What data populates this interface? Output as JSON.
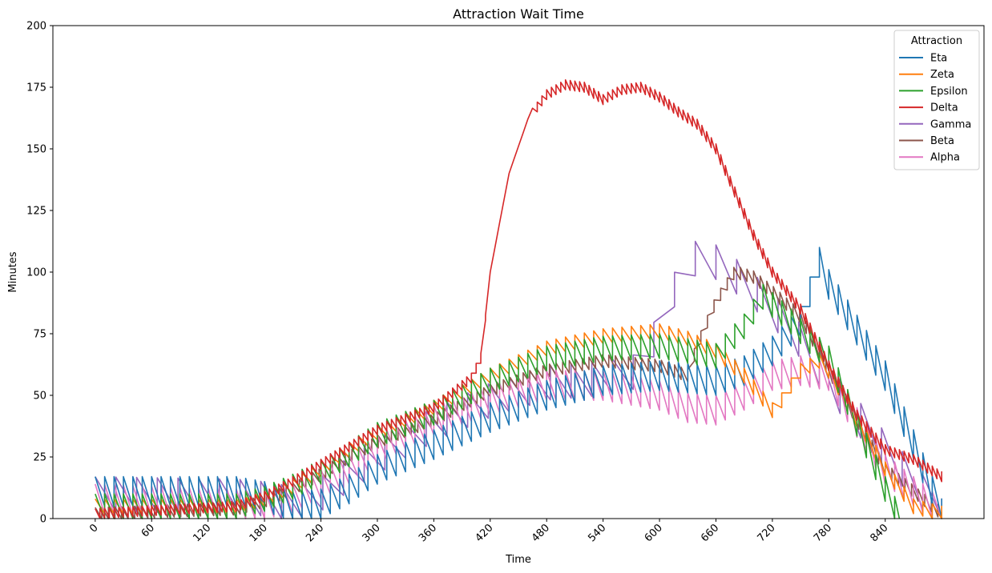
{
  "chart_data": {
    "type": "line",
    "title": "Attraction Wait Time",
    "xlabel": "Time",
    "ylabel": "Minutes",
    "xlim": [
      -45,
      945
    ],
    "ylim": [
      0,
      200
    ],
    "xticks": [
      0,
      60,
      120,
      180,
      240,
      300,
      360,
      420,
      480,
      540,
      600,
      660,
      720,
      780,
      840
    ],
    "yticks": [
      0,
      25,
      50,
      75,
      100,
      125,
      150,
      175,
      200
    ],
    "x_tick_rotation": 45,
    "grid": false,
    "legend": {
      "title": "Attraction",
      "placement": "top-right"
    },
    "series": [
      {
        "name": "Eta",
        "color": "#1f77b4",
        "period": 10,
        "amp": 12,
        "x": [
          0,
          150,
          180,
          210,
          240,
          270,
          300,
          360,
          420,
          480,
          540,
          600,
          660,
          690,
          720,
          750,
          770,
          780,
          840,
          900
        ],
        "y": [
          11,
          11,
          9,
          5,
          6,
          12,
          20,
          30,
          41,
          50,
          56,
          58,
          56,
          60,
          68,
          80,
          104,
          95,
          58,
          2
        ]
      },
      {
        "name": "Zeta",
        "color": "#ff7f0e",
        "period": 10,
        "amp": 6,
        "x": [
          0,
          150,
          180,
          210,
          240,
          270,
          300,
          360,
          420,
          480,
          540,
          600,
          630,
          660,
          690,
          720,
          730,
          750,
          770,
          780,
          840,
          870,
          900
        ],
        "y": [
          5,
          5,
          8,
          13,
          20,
          28,
          35,
          45,
          58,
          69,
          74,
          76,
          73,
          68,
          58,
          44,
          48,
          60,
          64,
          60,
          20,
          5,
          2
        ]
      },
      {
        "name": "Epsilon",
        "color": "#2ca02c",
        "period": 10,
        "amp": 10,
        "x": [
          0,
          150,
          180,
          210,
          240,
          270,
          300,
          360,
          420,
          480,
          540,
          600,
          660,
          690,
          710,
          740,
          760,
          780,
          840,
          855
        ],
        "y": [
          5,
          5,
          8,
          13,
          19,
          26,
          34,
          43,
          56,
          65,
          69,
          70,
          66,
          78,
          90,
          80,
          72,
          65,
          12,
          0
        ]
      },
      {
        "name": "Delta",
        "color": "#d62728",
        "period": 5,
        "amp": 4,
        "x": [
          0,
          150,
          180,
          210,
          240,
          270,
          300,
          360,
          400,
          410,
          420,
          440,
          460,
          480,
          500,
          520,
          540,
          560,
          580,
          600,
          620,
          640,
          660,
          700,
          720,
          750,
          780,
          810,
          840,
          870,
          900
        ],
        "y": [
          2,
          5,
          9,
          15,
          22,
          29,
          36,
          45,
          57,
          65,
          100,
          140,
          162,
          172,
          176,
          175,
          170,
          174,
          175,
          171,
          165,
          160,
          150,
          115,
          100,
          85,
          62,
          42,
          28,
          24,
          17
        ]
      },
      {
        "name": "Gamma",
        "color": "#9467bd",
        "period": 22,
        "amp": 14,
        "x": [
          0,
          150,
          180,
          210,
          240,
          270,
          300,
          360,
          420,
          480,
          540,
          580,
          600,
          630,
          660,
          690,
          720,
          750,
          780,
          840,
          900
        ],
        "y": [
          10,
          9,
          8,
          6,
          10,
          18,
          25,
          38,
          48,
          55,
          57,
          60,
          78,
          106,
          104,
          96,
          85,
          72,
          55,
          28,
          2
        ]
      },
      {
        "name": "Beta",
        "color": "#8c564b",
        "period": 7,
        "amp": 5,
        "x": [
          0,
          150,
          180,
          210,
          240,
          270,
          300,
          360,
          420,
          480,
          540,
          600,
          630,
          640,
          660,
          680,
          700,
          720,
          750,
          780,
          840,
          900
        ],
        "y": [
          2,
          4,
          7,
          12,
          18,
          25,
          31,
          40,
          52,
          60,
          64,
          62,
          58,
          70,
          88,
          100,
          98,
          92,
          82,
          60,
          20,
          2
        ]
      },
      {
        "name": "Alpha",
        "color": "#e377c2",
        "period": 10,
        "amp": 12,
        "x": [
          0,
          150,
          180,
          210,
          240,
          270,
          300,
          360,
          420,
          480,
          540,
          600,
          630,
          660,
          690,
          720,
          750,
          780,
          840,
          900
        ],
        "y": [
          8,
          6,
          6,
          8,
          14,
          20,
          28,
          40,
          48,
          54,
          54,
          50,
          45,
          44,
          50,
          58,
          60,
          58,
          20,
          2
        ]
      }
    ]
  }
}
